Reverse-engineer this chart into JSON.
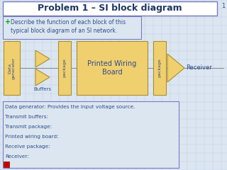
{
  "title": "Problem 1 – SI block diagram",
  "bg_color": "#dce6f1",
  "grid_color": "#b8cce4",
  "title_bg": "#ffffff",
  "title_border": "#7a7abf",
  "title_color": "#1f3864",
  "block_fill": "#f0cf6e",
  "block_edge": "#a89030",
  "text_color": "#2e4d8a",
  "answer_border": "#7a7abf",
  "question_text": "Describe the function of each block of this\ntypical block diagram of an SI network.",
  "answer_lines": [
    "Data generator: Provides the input voltage source.",
    "Transmit buffers:",
    "Transmit package:",
    "Printed wiring board:",
    "Receive package:",
    "Receiver:"
  ],
  "slide_number": "1",
  "green_cross_color": "#00aa00",
  "red_sq_color": "#cc0000"
}
